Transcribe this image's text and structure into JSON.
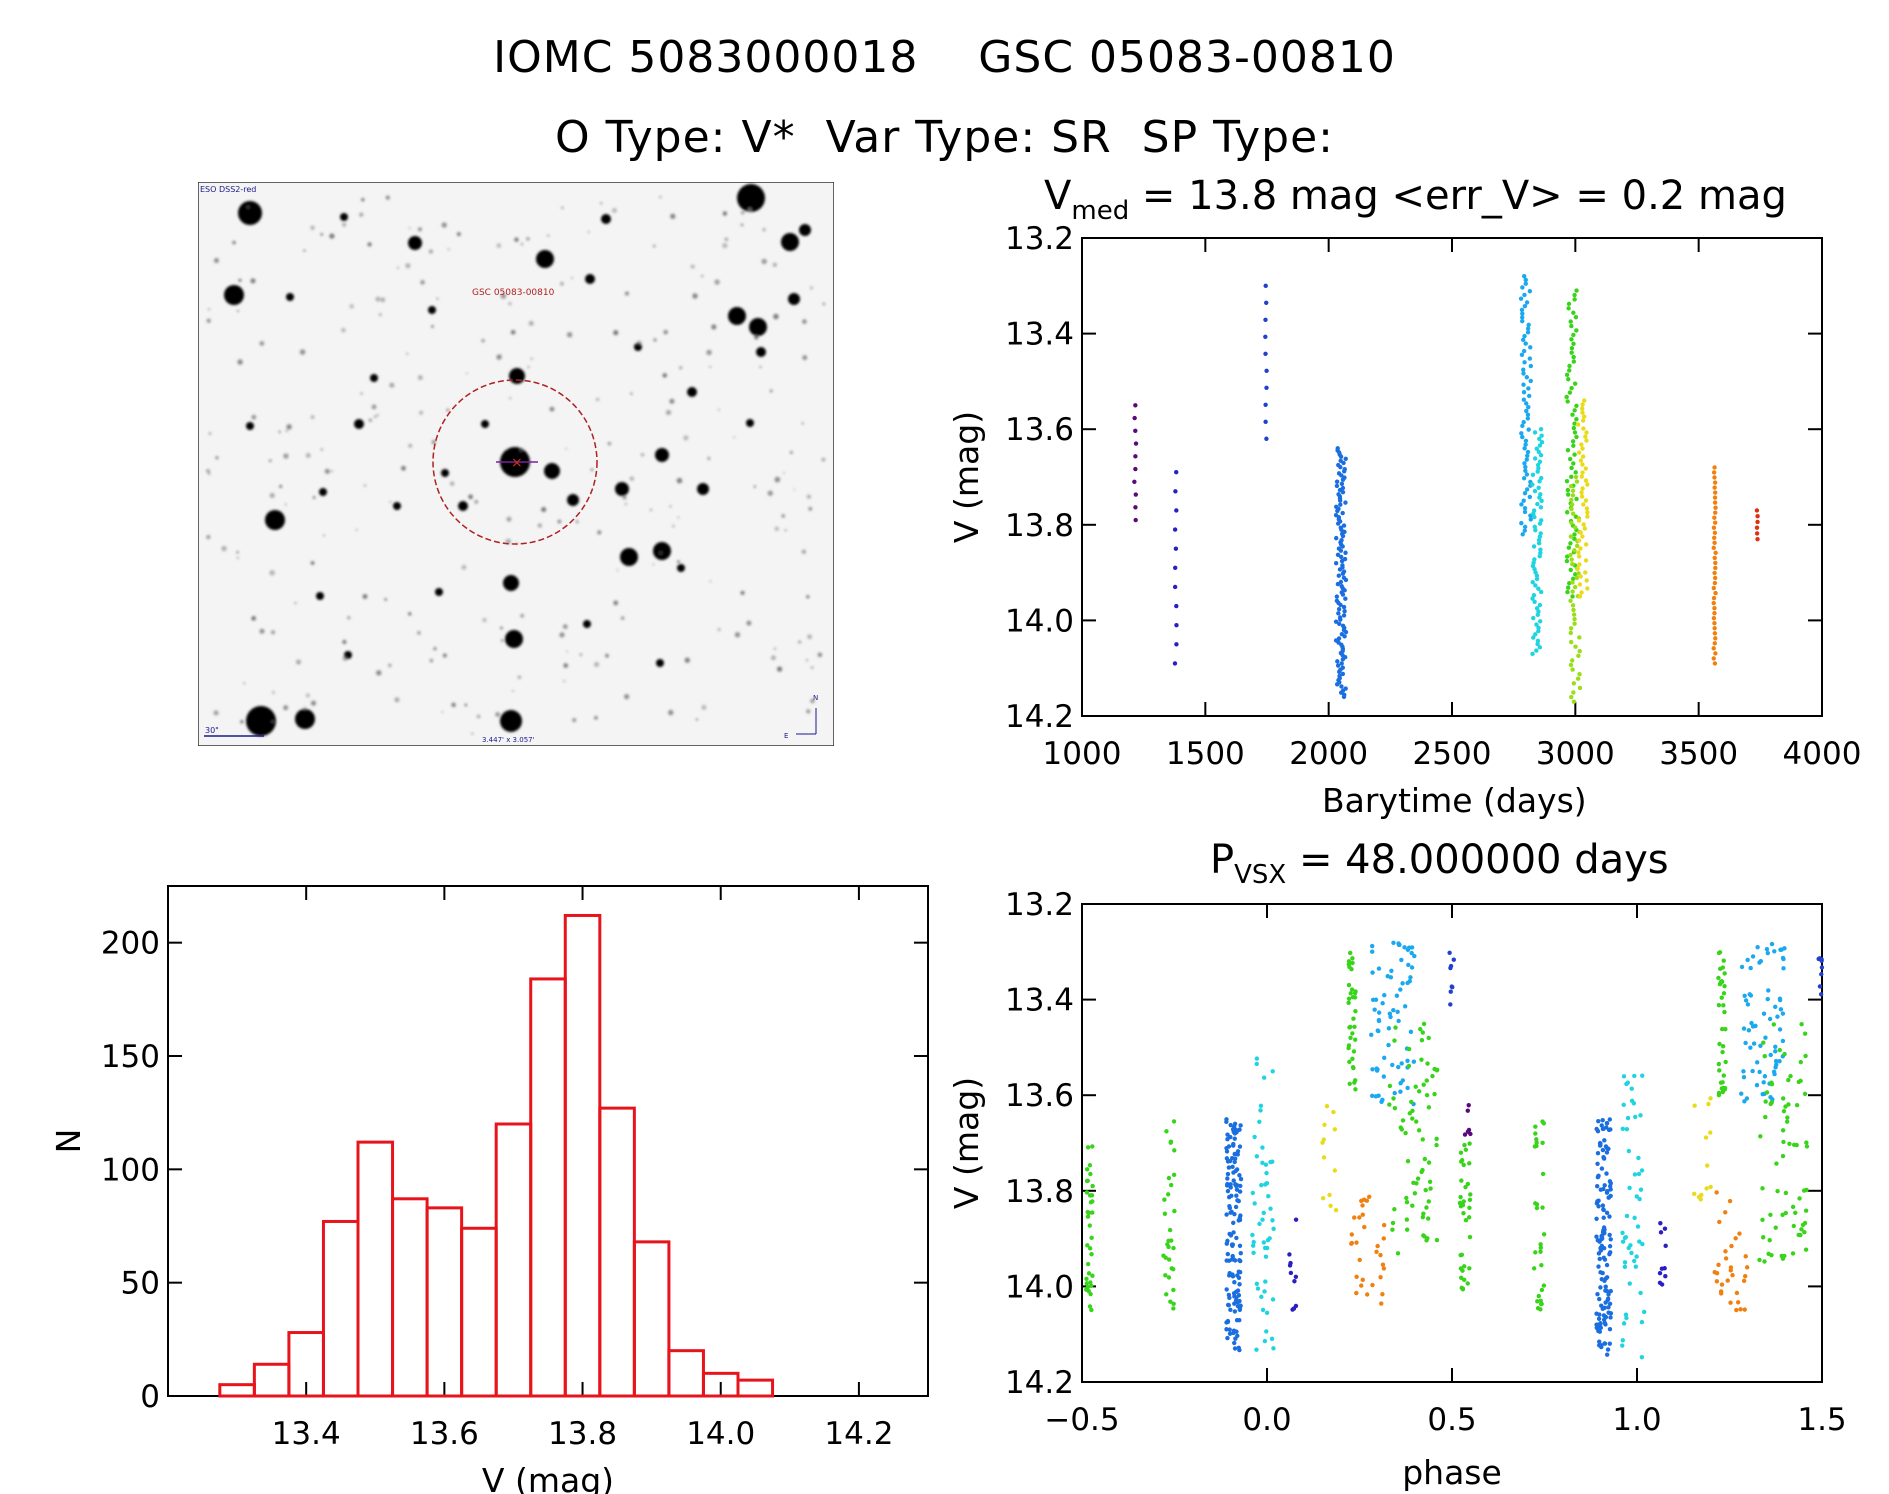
{
  "header": {
    "title_line1": "IOMC 5083000018    GSC 05083-00810",
    "title_line2": "O Type: V*  Var Type: SR  SP Type:"
  },
  "finder": {
    "survey_label": "ESO DSS2-red",
    "target_label": "GSC 05083-00810",
    "scale_label": "30\"",
    "fov_label": "3.447' x 3.057'",
    "north_label": "N",
    "east_label": "E"
  },
  "colors": {
    "histogram": "#e8141c",
    "finder_circle": "#b02020",
    "finder_marker": "#7a1fa2"
  },
  "chart_data": [
    {
      "type": "scatter",
      "title_prefix": "V",
      "title_sub": "med",
      "title_rest": " = 13.8 mag <err_V> = 0.2 mag",
      "xlabel": "Barytime (days)",
      "ylabel": "V (mag)",
      "xlim": [
        1000,
        4000
      ],
      "ylim": [
        14.2,
        13.2
      ],
      "xticks": [
        "1000",
        "1500",
        "2000",
        "2500",
        "3000",
        "3500",
        "4000"
      ],
      "yticks": [
        "13.2",
        "13.4",
        "13.6",
        "13.8",
        "14.0",
        "14.2"
      ],
      "series": [
        {
          "name": "s1",
          "color": "#5a0a78",
          "x": 1215,
          "ymin": 13.55,
          "ymax": 13.79,
          "n": 10
        },
        {
          "name": "s2",
          "color": "#2a1fc0",
          "x": 1380,
          "ymin": 13.69,
          "ymax": 14.09,
          "n": 11
        },
        {
          "name": "s3",
          "color": "#2140d0",
          "x": 1745,
          "ymin": 13.3,
          "ymax": 13.62,
          "n": 10
        },
        {
          "name": "s4",
          "color": "#1a6ee0",
          "x": 2050,
          "ymin": 13.64,
          "ymax": 14.16,
          "n": 120
        },
        {
          "name": "s5",
          "color": "#1aa8ef",
          "x": 2800,
          "ymin": 13.28,
          "ymax": 13.82,
          "n": 70
        },
        {
          "name": "s6",
          "color": "#1fd4e0",
          "x": 2845,
          "ymin": 13.6,
          "ymax": 14.07,
          "n": 70
        },
        {
          "name": "s7",
          "color": "#38d41a",
          "x": 2985,
          "ymin": 13.31,
          "ymax": 13.95,
          "n": 70
        },
        {
          "name": "s8",
          "color": "#9ade1a",
          "x": 3000,
          "ymin": 13.7,
          "ymax": 14.17,
          "n": 50
        },
        {
          "name": "s9",
          "color": "#e8dc1a",
          "x": 3030,
          "ymin": 13.54,
          "ymax": 13.95,
          "n": 50
        },
        {
          "name": "s10",
          "color": "#f08010",
          "x": 3565,
          "ymin": 13.68,
          "ymax": 14.09,
          "n": 40
        },
        {
          "name": "s11",
          "color": "#e03010",
          "x": 3740,
          "ymin": 13.77,
          "ymax": 13.83,
          "n": 6
        }
      ]
    },
    {
      "type": "scatter",
      "title_prefix": "P",
      "title_sub": "VSX",
      "title_rest": " = 48.000000 days",
      "xlabel": "phase",
      "ylabel": "V (mag)",
      "xlim": [
        -0.5,
        1.5
      ],
      "ylim": [
        14.2,
        13.2
      ],
      "xticks": [
        "−0.5",
        "0.0",
        "0.5",
        "1.0",
        "1.5"
      ],
      "yticks": [
        "13.2",
        "13.4",
        "13.6",
        "13.8",
        "14.0",
        "14.2"
      ],
      "series": [
        {
          "name": "p1",
          "color": "#38d41a",
          "xmin": -0.49,
          "xmax": -0.47,
          "ymin": 13.7,
          "ymax": 14.05,
          "n": 35
        },
        {
          "name": "p2",
          "color": "#38d41a",
          "xmin": -0.28,
          "xmax": -0.25,
          "ymin": 13.65,
          "ymax": 14.05,
          "n": 30
        },
        {
          "name": "p3",
          "color": "#1a6ee0",
          "xmin": -0.11,
          "xmax": -0.07,
          "ymin": 13.65,
          "ymax": 14.15,
          "n": 140
        },
        {
          "name": "p4",
          "color": "#1fd4e0",
          "xmin": -0.04,
          "xmax": 0.02,
          "ymin": 13.5,
          "ymax": 14.15,
          "n": 50
        },
        {
          "name": "p5",
          "color": "#2a1fc0",
          "xmin": 0.06,
          "xmax": 0.08,
          "ymin": 13.86,
          "ymax": 14.08,
          "n": 10
        },
        {
          "name": "p6",
          "color": "#e8dc1a",
          "xmin": 0.15,
          "xmax": 0.2,
          "ymin": 13.6,
          "ymax": 13.85,
          "n": 12
        },
        {
          "name": "p7",
          "color": "#f08010",
          "xmin": 0.21,
          "xmax": 0.32,
          "ymin": 13.8,
          "ymax": 14.05,
          "n": 30
        },
        {
          "name": "p8",
          "color": "#38d41a",
          "xmin": 0.22,
          "xmax": 0.24,
          "ymin": 13.3,
          "ymax": 13.6,
          "n": 35
        },
        {
          "name": "p9",
          "color": "#1aa8ef",
          "xmin": 0.28,
          "xmax": 0.4,
          "ymin": 13.28,
          "ymax": 13.62,
          "n": 70
        },
        {
          "name": "p10",
          "color": "#38d41a",
          "xmin": 0.33,
          "xmax": 0.46,
          "ymin": 13.45,
          "ymax": 13.95,
          "n": 70
        },
        {
          "name": "p11",
          "color": "#2140d0",
          "xmin": 0.49,
          "xmax": 0.51,
          "ymin": 13.3,
          "ymax": 13.42,
          "n": 8
        },
        {
          "name": "p12",
          "color": "#5a0a78",
          "xmin": 0.53,
          "xmax": 0.55,
          "ymin": 13.62,
          "ymax": 13.78,
          "n": 6
        },
        {
          "name": "p13",
          "color": "#38d41a",
          "xmin": 0.52,
          "xmax": 0.55,
          "ymin": 13.7,
          "ymax": 14.05,
          "n": 35
        },
        {
          "name": "p14",
          "color": "#38d41a",
          "xmin": 0.72,
          "xmax": 0.75,
          "ymin": 13.65,
          "ymax": 14.05,
          "n": 30
        },
        {
          "name": "p15",
          "color": "#1a6ee0",
          "xmin": 0.89,
          "xmax": 0.93,
          "ymin": 13.65,
          "ymax": 14.15,
          "n": 140
        },
        {
          "name": "p16",
          "color": "#1fd4e0",
          "xmin": 0.96,
          "xmax": 1.02,
          "ymin": 13.5,
          "ymax": 14.15,
          "n": 50
        },
        {
          "name": "p17",
          "color": "#2a1fc0",
          "xmin": 1.06,
          "xmax": 1.08,
          "ymin": 13.86,
          "ymax": 14.08,
          "n": 10
        },
        {
          "name": "p18",
          "color": "#e8dc1a",
          "xmin": 1.15,
          "xmax": 1.2,
          "ymin": 13.6,
          "ymax": 13.85,
          "n": 12
        },
        {
          "name": "p19",
          "color": "#f08010",
          "xmin": 1.21,
          "xmax": 1.32,
          "ymin": 13.8,
          "ymax": 14.05,
          "n": 30
        },
        {
          "name": "p20",
          "color": "#38d41a",
          "xmin": 1.22,
          "xmax": 1.24,
          "ymin": 13.3,
          "ymax": 13.6,
          "n": 35
        },
        {
          "name": "p21",
          "color": "#1aa8ef",
          "xmin": 1.28,
          "xmax": 1.4,
          "ymin": 13.28,
          "ymax": 13.62,
          "n": 70
        },
        {
          "name": "p22",
          "color": "#38d41a",
          "xmin": 1.33,
          "xmax": 1.46,
          "ymin": 13.45,
          "ymax": 13.95,
          "n": 70
        },
        {
          "name": "p23",
          "color": "#2140d0",
          "xmin": 1.49,
          "xmax": 1.5,
          "ymin": 13.3,
          "ymax": 13.42,
          "n": 8
        }
      ]
    },
    {
      "type": "bar",
      "title": "",
      "xlabel": "V (mag)",
      "ylabel": "N",
      "xlim": [
        13.2,
        14.3
      ],
      "ylim": [
        0,
        225
      ],
      "xticks": [
        "13.4",
        "13.6",
        "13.8",
        "14.0",
        "14.2"
      ],
      "yticks": [
        "0",
        "50",
        "100",
        "150",
        "200"
      ],
      "bin_width": 0.05,
      "bin_starts": [
        13.275,
        13.325,
        13.375,
        13.425,
        13.475,
        13.525,
        13.575,
        13.625,
        13.675,
        13.725,
        13.775,
        13.825,
        13.875,
        13.925,
        13.975,
        14.025,
        14.075,
        14.125
      ],
      "values": [
        5,
        14,
        28,
        77,
        112,
        87,
        83,
        74,
        120,
        184,
        212,
        127,
        68,
        20,
        10,
        7,
        0,
        0
      ]
    }
  ]
}
